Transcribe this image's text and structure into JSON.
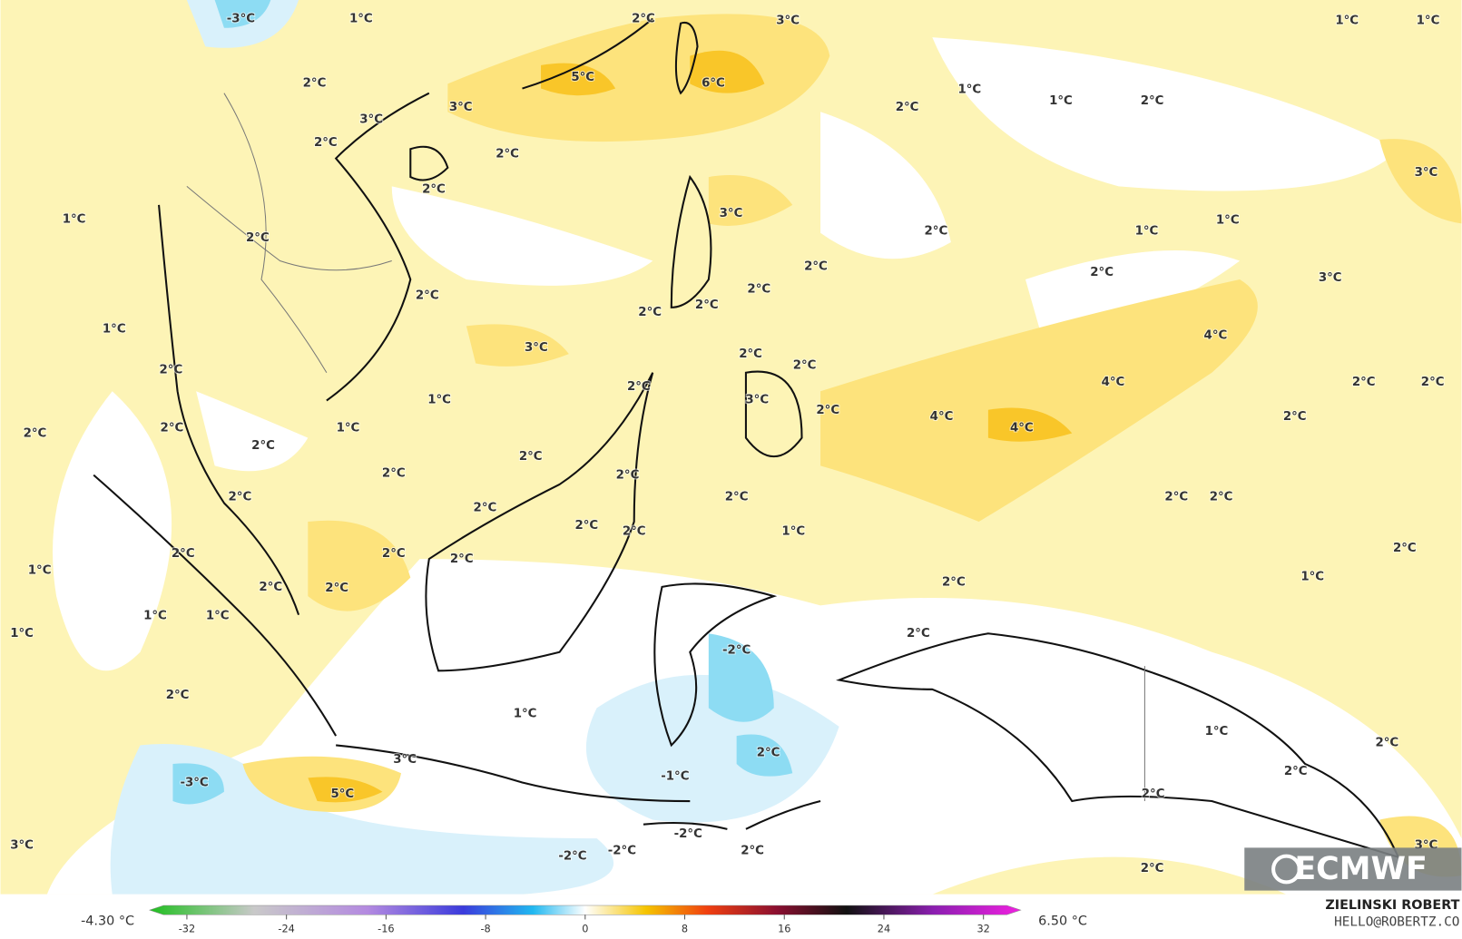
{
  "contour_labels": [
    "-3°C",
    "1°C",
    "2°C",
    "3°C",
    "1°C",
    "1°C",
    "5°C",
    "6°C",
    "2°C",
    "3°C",
    "3°C",
    "1°C",
    "1°C",
    "2°C",
    "2°C",
    "2°C",
    "2°C",
    "2°C",
    "3°C",
    "3°C",
    "1°C",
    "2°C",
    "1°C",
    "1°C",
    "2°C",
    "2°C",
    "2°C",
    "3°C",
    "2°C",
    "2°C",
    "2°C",
    "2°C",
    "1°C",
    "3°C",
    "4°C",
    "2°C",
    "2°C",
    "2°C",
    "2°C",
    "4°C",
    "2°C",
    "2°C",
    "1°C",
    "3°C",
    "2°C",
    "4°C",
    "2°C",
    "2°C",
    "2°C",
    "1°C",
    "4°C",
    "2°C",
    "2°C",
    "2°C",
    "2°C",
    "2°C",
    "2°C",
    "2°C",
    "2°C",
    "2°C",
    "2°C",
    "2°C",
    "1°C",
    "2°C",
    "2°C",
    "2°C",
    "2°C",
    "1°C",
    "1°C",
    "2°C",
    "2°C",
    "2°C",
    "1°C",
    "1°C",
    "1°C",
    "2°C",
    "-2°C",
    "2°C",
    "1°C",
    "1°C",
    "2°C",
    "3°C",
    "2°C",
    "-1°C",
    "2°C",
    "-3°C",
    "5°C",
    "2°C",
    "-2°C",
    "2°C",
    "3°C",
    "-2°C",
    "-2°C",
    "3°C",
    "2°C"
  ],
  "colorbar": {
    "min_label": "-4.30 °C",
    "max_label": "6.50 °C",
    "lim": [
      -35,
      35
    ],
    "ticks": [
      -32,
      -24,
      -16,
      -8,
      0,
      8,
      16,
      24,
      32
    ]
  },
  "credit": {
    "name": "ZIELINSKI ROBERT",
    "contact": "HELLO@ROBERTZ.CO"
  },
  "logo": "ECMWF"
}
